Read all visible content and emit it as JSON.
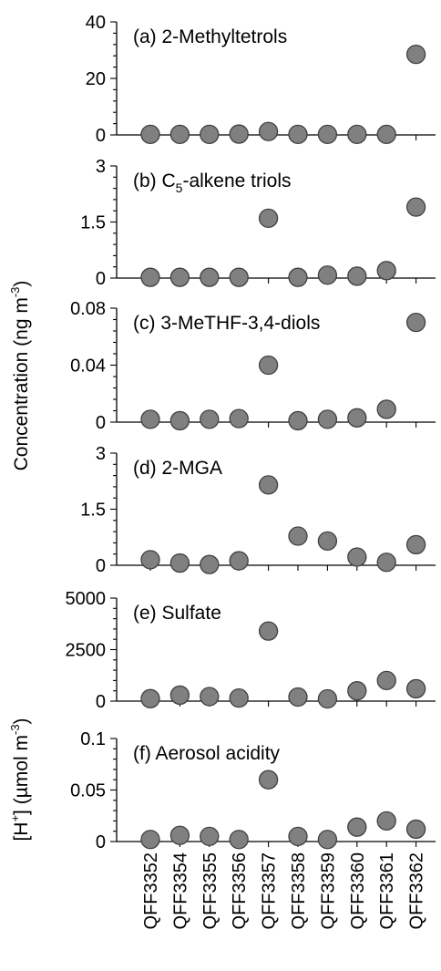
{
  "chart_data": {
    "type": "scatter",
    "categories": [
      "QFF3352",
      "QFF3354",
      "QFF3355",
      "QFF3356",
      "QFF3357",
      "QFF3358",
      "QFF3359",
      "QFF3360",
      "QFF3361",
      "QFF3362"
    ],
    "ylabel_concentration": {
      "main": "Concentration (ng m",
      "sup": "-3",
      "close": ")"
    },
    "ylabel_acidity": {
      "pre": "[H",
      "sup1": "+",
      "mid": "] (µmol m",
      "sup2": "-3",
      "close": ")"
    },
    "marker_fill": "#808080",
    "marker_stroke": "#404040",
    "panels": [
      {
        "label": "(a) 2-Methyltetrols",
        "ylim": [
          0,
          40
        ],
        "ticks": [
          "0",
          "20",
          "40"
        ],
        "tick_values": [
          0,
          20,
          40
        ],
        "values": [
          0.2,
          0.2,
          0.2,
          0.3,
          1.2,
          0.2,
          0.2,
          0.2,
          0.2,
          28.5
        ]
      },
      {
        "label_pre": "(b) C",
        "label_sub": "5",
        "label_post": "-alkene triols",
        "ylim": [
          0,
          3
        ],
        "ticks": [
          "0",
          "1.5",
          "3"
        ],
        "tick_values": [
          0,
          1.5,
          3
        ],
        "values": [
          0.02,
          0.02,
          0.02,
          0.02,
          1.6,
          0.02,
          0.08,
          0.05,
          0.2,
          1.9
        ]
      },
      {
        "label": "(c) 3-MeTHF-3,4-diols",
        "ylim": [
          0,
          0.08
        ],
        "ticks": [
          "0",
          "0.04",
          "0.08"
        ],
        "tick_values": [
          0,
          0.04,
          0.08
        ],
        "values": [
          0.002,
          0.001,
          0.002,
          0.0025,
          0.04,
          0.001,
          0.002,
          0.003,
          0.009,
          0.07
        ]
      },
      {
        "label": "(d) 2-MGA",
        "ylim": [
          0,
          3
        ],
        "ticks": [
          "0",
          "1.5",
          "3"
        ],
        "tick_values": [
          0,
          1.5,
          3
        ],
        "values": [
          0.15,
          0.06,
          0.02,
          0.12,
          2.15,
          0.78,
          0.65,
          0.22,
          0.08,
          0.55
        ]
      },
      {
        "label": "(e) Sulfate",
        "ylim": [
          0,
          5000
        ],
        "ticks": [
          "0",
          "2500",
          "5000"
        ],
        "tick_values": [
          0,
          2500,
          5000
        ],
        "values": [
          120,
          290,
          220,
          150,
          3400,
          200,
          110,
          500,
          1000,
          600
        ]
      },
      {
        "label": "(f) Aerosol acidity",
        "ylim": [
          0,
          0.1
        ],
        "ticks": [
          "0",
          "0.05",
          "0.1"
        ],
        "tick_values": [
          0,
          0.05,
          0.1
        ],
        "values": [
          0.002,
          0.006,
          0.005,
          0.002,
          0.06,
          0.005,
          0.002,
          0.014,
          0.02,
          0.012
        ]
      }
    ]
  }
}
